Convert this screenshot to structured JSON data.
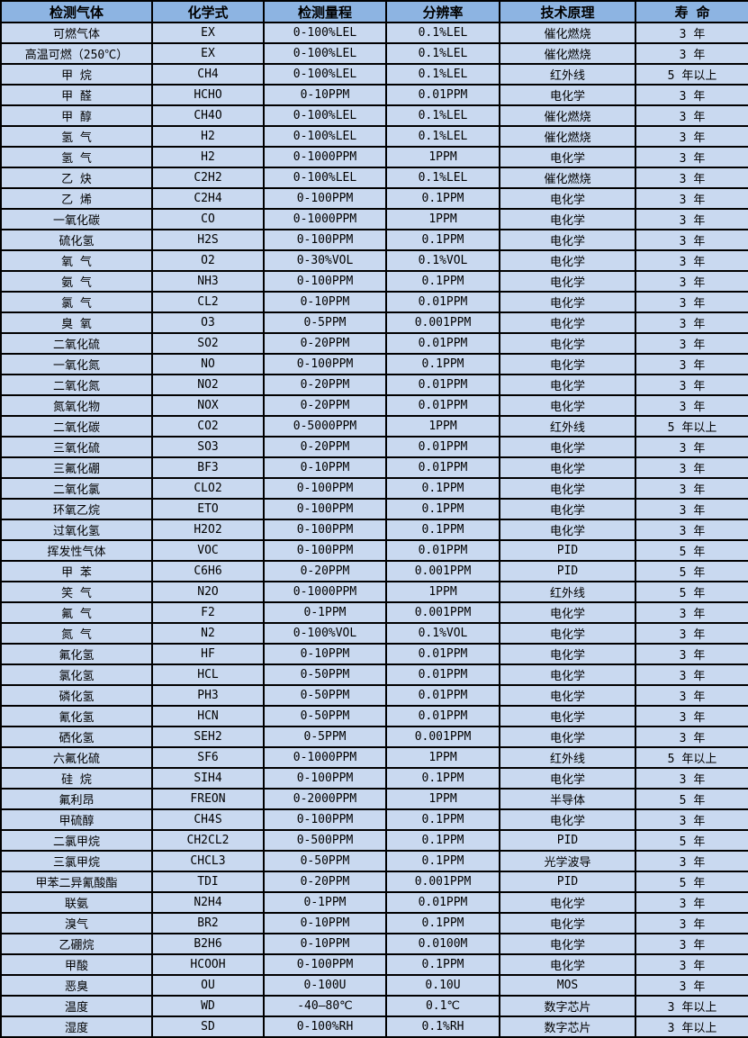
{
  "colors": {
    "header_bg": "#8db4e2",
    "row_bg": "#c9d9f0",
    "border": "#000000",
    "text": "#000000"
  },
  "table": {
    "columns": [
      {
        "key": "gas",
        "label": "检测气体"
      },
      {
        "key": "formula",
        "label": "化学式"
      },
      {
        "key": "range",
        "label": "检测量程"
      },
      {
        "key": "resolution",
        "label": "分辨率"
      },
      {
        "key": "principle",
        "label": "技术原理"
      },
      {
        "key": "life",
        "label": "寿 命"
      }
    ],
    "rows": [
      {
        "gas": "可燃气体",
        "formula": "EX",
        "range": "0-100%LEL",
        "resolution": "0.1%LEL",
        "principle": "催化燃烧",
        "life": "3 年"
      },
      {
        "gas": "高温可燃（250℃）",
        "formula": "EX",
        "range": "0-100%LEL",
        "resolution": "0.1%LEL",
        "principle": "催化燃烧",
        "life": "3 年"
      },
      {
        "gas": "甲 烷",
        "formula": "CH4",
        "range": "0-100%LEL",
        "resolution": "0.1%LEL",
        "principle": "红外线",
        "life": "5 年以上"
      },
      {
        "gas": "甲 醛",
        "formula": "HCHO",
        "range": "0-10PPM",
        "resolution": "0.01PPM",
        "principle": "电化学",
        "life": "3 年"
      },
      {
        "gas": "甲 醇",
        "formula": "CH4O",
        "range": "0-100%LEL",
        "resolution": "0.1%LEL",
        "principle": "催化燃烧",
        "life": "3 年"
      },
      {
        "gas": "氢 气",
        "formula": "H2",
        "range": "0-100%LEL",
        "resolution": "0.1%LEL",
        "principle": "催化燃烧",
        "life": "3 年"
      },
      {
        "gas": "氢 气",
        "formula": "H2",
        "range": "0-1000PPM",
        "resolution": "1PPM",
        "principle": "电化学",
        "life": "3 年"
      },
      {
        "gas": "乙 炔",
        "formula": "C2H2",
        "range": "0-100%LEL",
        "resolution": "0.1%LEL",
        "principle": "催化燃烧",
        "life": "3 年"
      },
      {
        "gas": "乙 烯",
        "formula": "C2H4",
        "range": "0-100PPM",
        "resolution": "0.1PPM",
        "principle": "电化学",
        "life": "3 年"
      },
      {
        "gas": "一氧化碳",
        "formula": "CO",
        "range": "0-1000PPM",
        "resolution": "1PPM",
        "principle": "电化学",
        "life": "3 年"
      },
      {
        "gas": "硫化氢",
        "formula": "H2S",
        "range": "0-100PPM",
        "resolution": "0.1PPM",
        "principle": "电化学",
        "life": "3 年"
      },
      {
        "gas": "氧 气",
        "formula": "O2",
        "range": "0-30%VOL",
        "resolution": "0.1%VOL",
        "principle": "电化学",
        "life": "3 年"
      },
      {
        "gas": "氨 气",
        "formula": "NH3",
        "range": "0-100PPM",
        "resolution": "0.1PPM",
        "principle": "电化学",
        "life": "3 年"
      },
      {
        "gas": "氯 气",
        "formula": "CL2",
        "range": "0-10PPM",
        "resolution": "0.01PPM",
        "principle": "电化学",
        "life": "3 年"
      },
      {
        "gas": "臭 氧",
        "formula": "O3",
        "range": "0-5PPM",
        "resolution": "0.001PPM",
        "principle": "电化学",
        "life": "3 年"
      },
      {
        "gas": "二氧化硫",
        "formula": "SO2",
        "range": "0-20PPM",
        "resolution": "0.01PPM",
        "principle": "电化学",
        "life": "3 年"
      },
      {
        "gas": "一氧化氮",
        "formula": "NO",
        "range": "0-100PPM",
        "resolution": "0.1PPM",
        "principle": "电化学",
        "life": "3 年"
      },
      {
        "gas": "二氧化氮",
        "formula": "NO2",
        "range": "0-20PPM",
        "resolution": "0.01PPM",
        "principle": "电化学",
        "life": "3 年"
      },
      {
        "gas": "氮氧化物",
        "formula": "NOX",
        "range": "0-20PPM",
        "resolution": "0.01PPM",
        "principle": "电化学",
        "life": "3 年"
      },
      {
        "gas": "二氧化碳",
        "formula": "CO2",
        "range": "0-5000PPM",
        "resolution": "1PPM",
        "principle": "红外线",
        "life": "5 年以上"
      },
      {
        "gas": "三氧化硫",
        "formula": "SO3",
        "range": "0-20PPM",
        "resolution": "0.01PPM",
        "principle": "电化学",
        "life": "3 年"
      },
      {
        "gas": "三氟化硼",
        "formula": "BF3",
        "range": "0-10PPM",
        "resolution": "0.01PPM",
        "principle": "电化学",
        "life": "3 年"
      },
      {
        "gas": "二氧化氯",
        "formula": "CLO2",
        "range": "0-100PPM",
        "resolution": "0.1PPM",
        "principle": "电化学",
        "life": "3 年"
      },
      {
        "gas": "环氧乙烷",
        "formula": "ETO",
        "range": "0-100PPM",
        "resolution": "0.1PPM",
        "principle": "电化学",
        "life": "3 年"
      },
      {
        "gas": "过氧化氢",
        "formula": "H2O2",
        "range": "0-100PPM",
        "resolution": "0.1PPM",
        "principle": "电化学",
        "life": "3 年"
      },
      {
        "gas": "挥发性气体",
        "formula": "VOC",
        "range": "0-100PPM",
        "resolution": "0.01PPM",
        "principle": "PID",
        "life": "5 年"
      },
      {
        "gas": "甲 苯",
        "formula": "C6H6",
        "range": "0-20PPM",
        "resolution": "0.001PPM",
        "principle": "PID",
        "life": "5 年"
      },
      {
        "gas": "笑 气",
        "formula": "N2O",
        "range": "0-1000PPM",
        "resolution": "1PPM",
        "principle": "红外线",
        "life": "5 年"
      },
      {
        "gas": "氟 气",
        "formula": "F2",
        "range": "0-1PPM",
        "resolution": "0.001PPM",
        "principle": "电化学",
        "life": "3 年"
      },
      {
        "gas": "氮 气",
        "formula": "N2",
        "range": "0-100%VOL",
        "resolution": "0.1%VOL",
        "principle": "电化学",
        "life": "3 年"
      },
      {
        "gas": "氟化氢",
        "formula": "HF",
        "range": "0-10PPM",
        "resolution": "0.01PPM",
        "principle": "电化学",
        "life": "3 年"
      },
      {
        "gas": "氯化氢",
        "formula": "HCL",
        "range": "0-50PPM",
        "resolution": "0.01PPM",
        "principle": "电化学",
        "life": "3 年"
      },
      {
        "gas": "磷化氢",
        "formula": "PH3",
        "range": "0-50PPM",
        "resolution": "0.01PPM",
        "principle": "电化学",
        "life": "3 年"
      },
      {
        "gas": "氰化氢",
        "formula": "HCN",
        "range": "0-50PPM",
        "resolution": "0.01PPM",
        "principle": "电化学",
        "life": "3 年"
      },
      {
        "gas": "硒化氢",
        "formula": "SEH2",
        "range": "0-5PPM",
        "resolution": "0.001PPM",
        "principle": "电化学",
        "life": "3 年"
      },
      {
        "gas": "六氟化硫",
        "formula": "SF6",
        "range": "0-1000PPM",
        "resolution": "1PPM",
        "principle": "红外线",
        "life": "5 年以上"
      },
      {
        "gas": "硅 烷",
        "formula": "SIH4",
        "range": "0-100PPM",
        "resolution": "0.1PPM",
        "principle": "电化学",
        "life": "3 年"
      },
      {
        "gas": "氟利昂",
        "formula": "FREON",
        "range": "0-2000PPM",
        "resolution": "1PPM",
        "principle": "半导体",
        "life": "5 年"
      },
      {
        "gas": "甲硫醇",
        "formula": "CH4S",
        "range": "0-100PPM",
        "resolution": "0.1PPM",
        "principle": "电化学",
        "life": "3 年"
      },
      {
        "gas": "二氯甲烷",
        "formula": "CH2CL2",
        "range": "0-500PPM",
        "resolution": "0.1PPM",
        "principle": "PID",
        "life": "5 年"
      },
      {
        "gas": "三氯甲烷",
        "formula": "CHCL3",
        "range": "0-50PPM",
        "resolution": "0.1PPM",
        "principle": "光学波导",
        "life": "3 年"
      },
      {
        "gas": "甲苯二异氰酸酯",
        "formula": "TDI",
        "range": "0-20PPM",
        "resolution": "0.001PPM",
        "principle": "PID",
        "life": "5 年"
      },
      {
        "gas": "联氨",
        "formula": "N2H4",
        "range": "0-1PPM",
        "resolution": "0.01PPM",
        "principle": "电化学",
        "life": "3 年"
      },
      {
        "gas": "溴气",
        "formula": "BR2",
        "range": "0-10PPM",
        "resolution": "0.1PPM",
        "principle": "电化学",
        "life": "3 年"
      },
      {
        "gas": "乙硼烷",
        "formula": "B2H6",
        "range": "0-10PPM",
        "resolution": "0.0100M",
        "principle": "电化学",
        "life": "3 年"
      },
      {
        "gas": "甲酸",
        "formula": "HCOOH",
        "range": "0-100PPM",
        "resolution": "0.1PPM",
        "principle": "电化学",
        "life": "3 年"
      },
      {
        "gas": "恶臭",
        "formula": "OU",
        "range": "0-100U",
        "resolution": "0.10U",
        "principle": "MOS",
        "life": "3 年"
      },
      {
        "gas": "温度",
        "formula": "WD",
        "range": "-40—80℃",
        "resolution": "0.1℃",
        "principle": "数字芯片",
        "life": "3 年以上"
      },
      {
        "gas": "湿度",
        "formula": "SD",
        "range": "0-100%RH",
        "resolution": "0.1%RH",
        "principle": "数字芯片",
        "life": "3 年以上"
      }
    ]
  }
}
